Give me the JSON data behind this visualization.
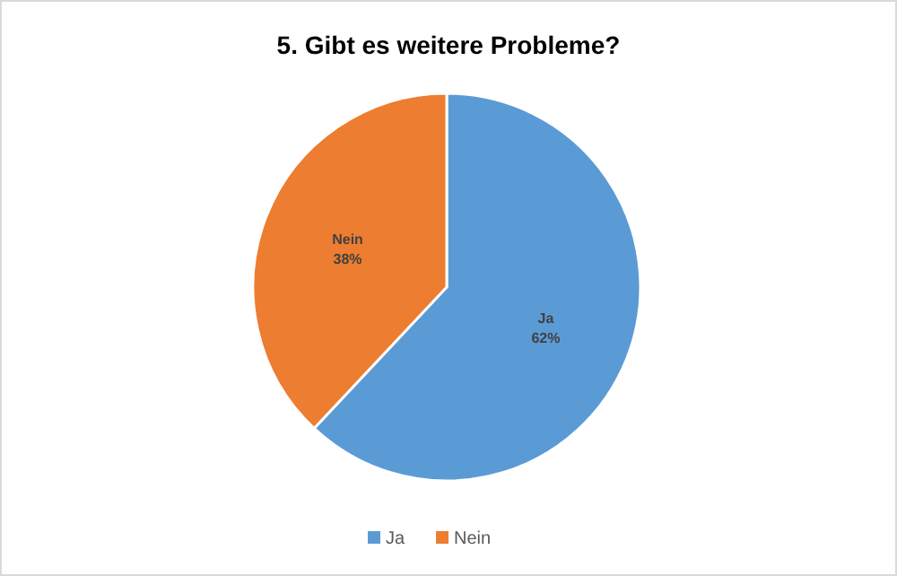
{
  "chart_data": {
    "type": "pie",
    "title": "5. Gibt es weitere Probleme?",
    "categories": [
      "Ja",
      "Nein"
    ],
    "values": [
      62,
      38
    ],
    "colors": [
      "#5b9bd5",
      "#ed7d31"
    ],
    "value_labels": [
      "62%",
      "38%"
    ],
    "legend": "bottom"
  }
}
